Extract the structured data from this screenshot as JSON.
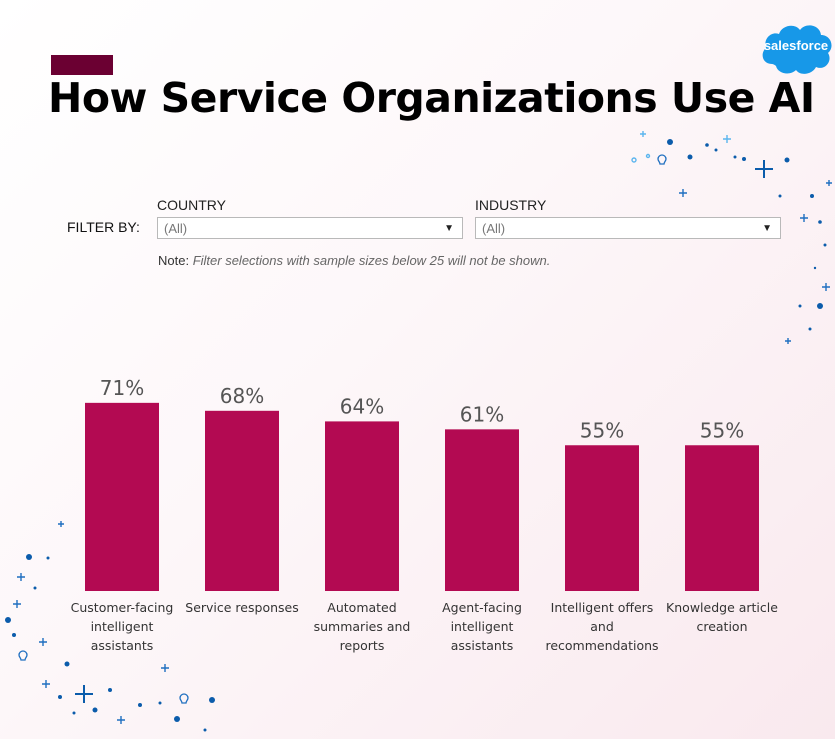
{
  "title": "How Service Organizations Use AI",
  "logo": {
    "text": "salesforce"
  },
  "filters": {
    "filter_by_label": "FILTER BY:",
    "country": {
      "label": "COUNTRY",
      "value": "(All)"
    },
    "industry": {
      "label": "INDUSTRY",
      "value": "(All)"
    },
    "note_label": "Note:",
    "note_text": "Filter selections with sample sizes below 25 will not be shown."
  },
  "colors": {
    "bar": "#b30a52",
    "title_accent": "#6b0032",
    "logo": "#1798e8",
    "decor": "#0b5cab"
  },
  "chart_data": {
    "type": "bar",
    "categories": [
      [
        "Customer-facing",
        "intelligent",
        "assistants"
      ],
      [
        "Service responses"
      ],
      [
        "Automated",
        "summaries and",
        "reports"
      ],
      [
        "Agent-facing",
        "intelligent",
        "assistants"
      ],
      [
        "Intelligent offers",
        "and",
        "recommendations"
      ],
      [
        "Knowledge article",
        "creation"
      ]
    ],
    "values": [
      71,
      68,
      64,
      61,
      55,
      55
    ],
    "value_labels": [
      "71%",
      "68%",
      "64%",
      "61%",
      "55%",
      "55%"
    ],
    "ylim": [
      0,
      100
    ],
    "grid": false
  }
}
